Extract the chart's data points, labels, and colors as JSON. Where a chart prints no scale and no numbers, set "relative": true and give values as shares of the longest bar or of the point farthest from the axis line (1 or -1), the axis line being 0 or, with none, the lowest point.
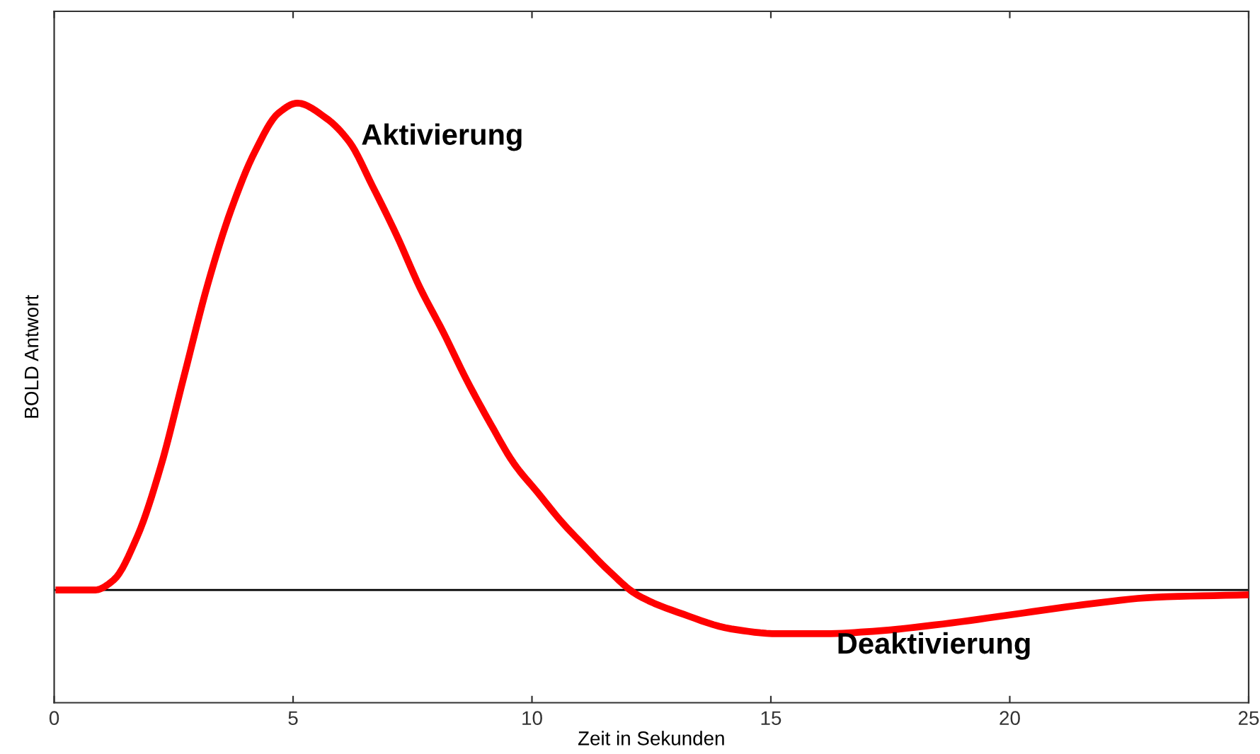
{
  "chart_data": {
    "type": "line",
    "relative": true,
    "xlabel": "Zeit in Sekunden",
    "ylabel": "BOLD Antwort",
    "xlim": [
      0,
      25
    ],
    "xticks": [
      0,
      5,
      10,
      15,
      20,
      25
    ],
    "grid": false,
    "legend": false,
    "marker": "none",
    "line_style": "solid",
    "ref_lines": [
      {
        "axis": "y",
        "value": 0,
        "color": "#000000"
      }
    ],
    "annotations": [
      "Aktivierung",
      "Deaktivierung"
    ],
    "series": [
      {
        "color": "#ff0000",
        "x": [
          0.1,
          0.86,
          1.24,
          1.74,
          2.22,
          2.72,
          3.22,
          3.7,
          4.2,
          4.7,
          5.09,
          5.68,
          6.18,
          6.66,
          7.16,
          7.66,
          8.14,
          8.64,
          9.14,
          9.62,
          10.12,
          10.62,
          11.1,
          11.6,
          12.2,
          13.17,
          14.17,
          15.15,
          16.12,
          17.13,
          18.6,
          20.09,
          21.57,
          23.05,
          25
        ],
        "values": [
          0,
          0,
          0.02,
          0.11,
          0.25,
          0.44,
          0.63,
          0.78,
          0.9,
          0.98,
          1,
          0.97,
          0.92,
          0.83,
          0.73,
          0.62,
          0.53,
          0.43,
          0.34,
          0.26,
          0.2,
          0.14,
          0.09,
          0.04,
          -0.01,
          -0.05,
          -0.08,
          -0.09,
          -0.09,
          -0.085,
          -0.07,
          -0.05,
          -0.03,
          -0.015,
          -0.01
        ]
      }
    ]
  }
}
